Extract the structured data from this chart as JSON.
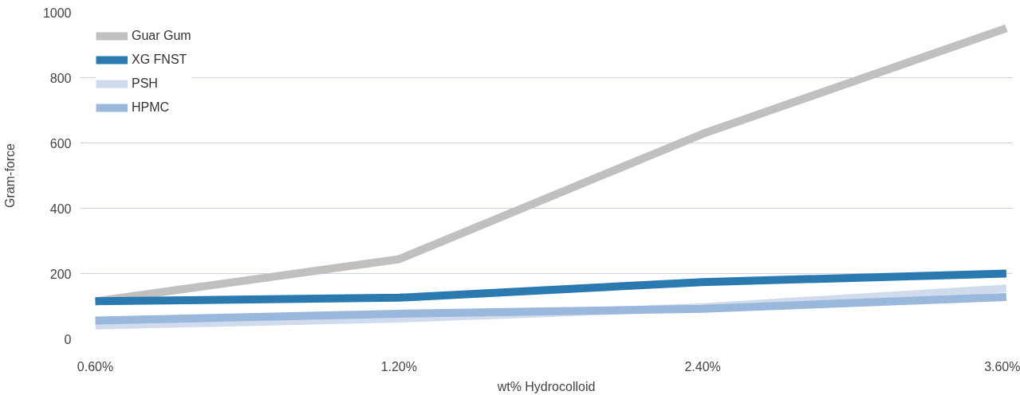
{
  "chart_data": {
    "type": "line",
    "xlabel": "wt% Hydrocolloid",
    "ylabel": "Gram-force",
    "categories": [
      "0.60%",
      "1.20%",
      "2.40%",
      "3.60%"
    ],
    "series": [
      {
        "name": "Guar Gum",
        "color": "#c0c0c0",
        "values": [
          115,
          244,
          628,
          951
        ]
      },
      {
        "name": "XG FNST",
        "color": "#2a7ab0",
        "values": [
          115,
          126,
          174,
          200
        ]
      },
      {
        "name": "PSH",
        "color": "#d0dcee",
        "values": [
          41,
          62,
          97,
          154
        ]
      },
      {
        "name": "HPMC",
        "color": "#9ab8dc",
        "values": [
          56,
          77,
          92,
          128
        ]
      }
    ],
    "ylim": [
      0,
      1000
    ],
    "yticks": [
      0,
      200,
      400,
      600,
      800,
      1000
    ],
    "grid": "y",
    "legend": "top left",
    "marker": "none",
    "line_style": "solid"
  }
}
